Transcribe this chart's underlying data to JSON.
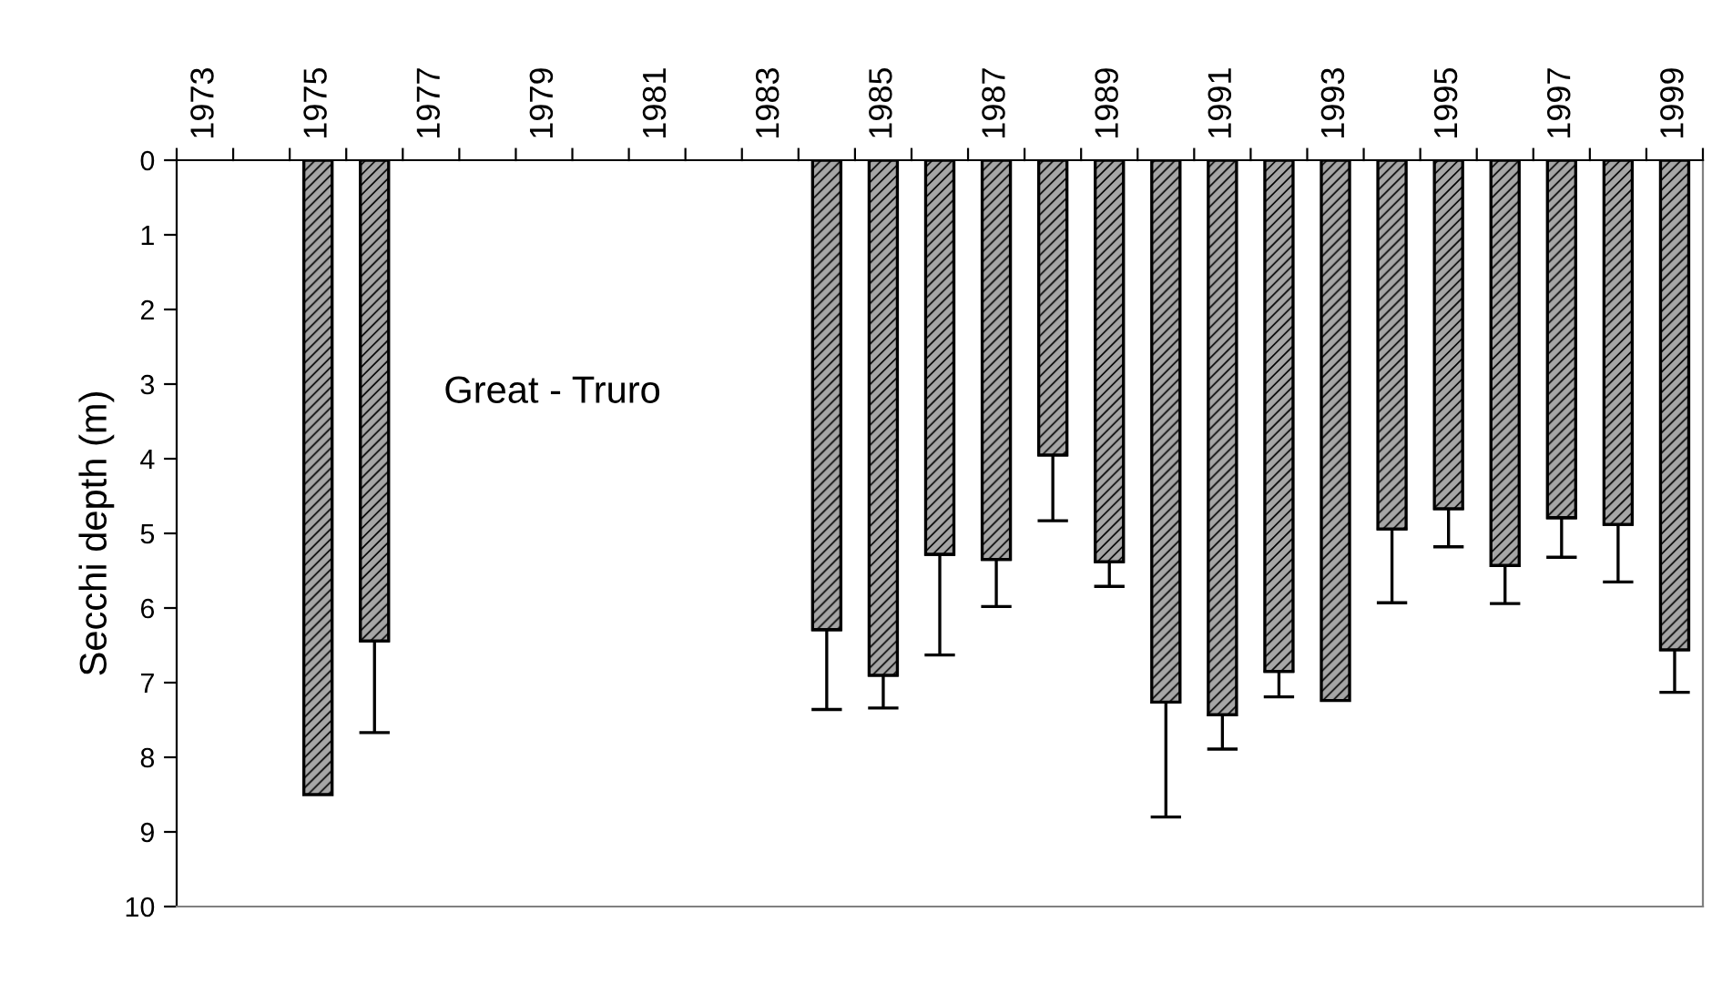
{
  "chart_data": {
    "type": "bar",
    "ylabel": "Secchi depth (m)",
    "categories": [
      "1973",
      null,
      "1975",
      null,
      "1977",
      null,
      "1979",
      null,
      "1981",
      null,
      "1983",
      null,
      "1985",
      null,
      "1987",
      null,
      "1989",
      null,
      "1991",
      null,
      "1993",
      null,
      "1995",
      null,
      "1997",
      null,
      "1999"
    ],
    "values": [
      null,
      null,
      8.5,
      6.44,
      null,
      null,
      null,
      null,
      null,
      null,
      null,
      6.29,
      6.9,
      5.28,
      5.35,
      3.95,
      5.38,
      7.26,
      7.43,
      6.85,
      7.24,
      4.94,
      4.67,
      5.43,
      4.79,
      4.88,
      6.56
    ],
    "errors": [
      null,
      null,
      null,
      [
        6.44,
        7.67
      ],
      null,
      null,
      null,
      null,
      null,
      null,
      null,
      [
        6.29,
        7.36
      ],
      [
        6.9,
        7.34
      ],
      [
        5.28,
        6.63
      ],
      [
        5.35,
        5.98
      ],
      [
        3.95,
        4.83
      ],
      [
        5.38,
        5.71
      ],
      [
        7.26,
        8.8
      ],
      [
        7.43,
        7.89
      ],
      [
        6.85,
        7.19
      ],
      null,
      [
        4.94,
        5.93
      ],
      [
        4.67,
        5.18
      ],
      [
        5.43,
        5.94
      ],
      [
        4.79,
        5.32
      ],
      [
        4.88,
        5.65
      ],
      [
        6.56,
        7.13
      ]
    ],
    "color": "#a6a6a6",
    "ylim": [
      10,
      0
    ],
    "yticks": [
      0,
      1,
      2,
      3,
      4,
      5,
      6,
      7,
      8,
      9,
      10
    ],
    "annotations": [
      "Great - Truro"
    ],
    "grid": false,
    "legend": false
  }
}
